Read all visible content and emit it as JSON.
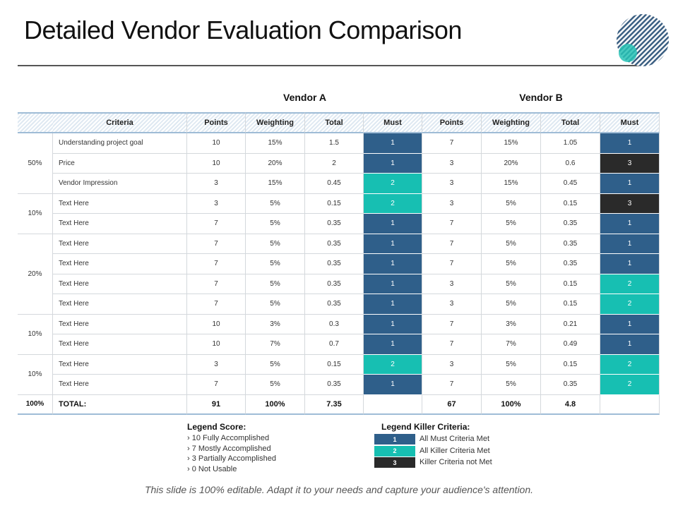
{
  "header": {
    "title": "Detailed Vendor Evaluation Comparison"
  },
  "table": {
    "vendors": [
      "Vendor A",
      "Vendor B"
    ],
    "columns": [
      "Criteria",
      "Points",
      "Weighting",
      "Total",
      "Must",
      "Points",
      "Weighting",
      "Total",
      "Must"
    ],
    "groups": [
      {
        "weight": "50%",
        "rows": [
          [
            "Understanding project goal",
            "10",
            "15%",
            "1.5",
            "1",
            "7",
            "15%",
            "1.05",
            "1"
          ],
          [
            "Price",
            "10",
            "20%",
            "2",
            "1",
            "3",
            "20%",
            "0.6",
            "3"
          ],
          [
            "Vendor Impression",
            "3",
            "15%",
            "0.45",
            "2",
            "3",
            "15%",
            "0.45",
            "1"
          ]
        ]
      },
      {
        "weight": "10%",
        "rows": [
          [
            "Text Here",
            "3",
            "5%",
            "0.15",
            "2",
            "3",
            "5%",
            "0.15",
            "3"
          ],
          [
            "Text Here",
            "7",
            "5%",
            "0.35",
            "1",
            "7",
            "5%",
            "0.35",
            "1"
          ]
        ]
      },
      {
        "weight": "20%",
        "rows": [
          [
            "Text Here",
            "7",
            "5%",
            "0.35",
            "1",
            "7",
            "5%",
            "0.35",
            "1"
          ],
          [
            "Text Here",
            "7",
            "5%",
            "0.35",
            "1",
            "7",
            "5%",
            "0.35",
            "1"
          ],
          [
            "Text Here",
            "7",
            "5%",
            "0.35",
            "1",
            "3",
            "5%",
            "0.15",
            "2"
          ],
          [
            "Text Here",
            "7",
            "5%",
            "0.35",
            "1",
            "3",
            "5%",
            "0.15",
            "2"
          ]
        ]
      },
      {
        "weight": "10%",
        "rows": [
          [
            "Text Here",
            "10",
            "3%",
            "0.3",
            "1",
            "7",
            "3%",
            "0.21",
            "1"
          ],
          [
            "Text Here",
            "10",
            "7%",
            "0.7",
            "1",
            "7",
            "7%",
            "0.49",
            "1"
          ]
        ]
      },
      {
        "weight": "10%",
        "rows": [
          [
            "Text Here",
            "3",
            "5%",
            "0.15",
            "2",
            "3",
            "5%",
            "0.15",
            "2"
          ],
          [
            "Text Here",
            "7",
            "5%",
            "0.35",
            "1",
            "7",
            "5%",
            "0.35",
            "2"
          ]
        ]
      }
    ],
    "total": {
      "weight": "100%",
      "label": "TOTAL:",
      "vendor_a": [
        "91",
        "100%",
        "7.35"
      ],
      "vendor_b": [
        "67",
        "100%",
        "4.8"
      ]
    }
  },
  "legend_score": {
    "title": "Legend Score:",
    "items": [
      "› 10 Fully Accomplished",
      "› 7 Mostly Accomplished",
      "› 3 Partially Accomplished",
      "› 0 Not Usable"
    ]
  },
  "legend_killer": {
    "title": "Legend Killer Criteria:",
    "items": [
      {
        "code": "1",
        "label": "All Must Criteria Met"
      },
      {
        "code": "2",
        "label": "All Killer Criteria Met"
      },
      {
        "code": "3",
        "label": "Killer Criteria not Met"
      }
    ]
  },
  "footer": {
    "text": "This slide is 100% editable. Adapt it to your needs and capture your audience's attention."
  }
}
